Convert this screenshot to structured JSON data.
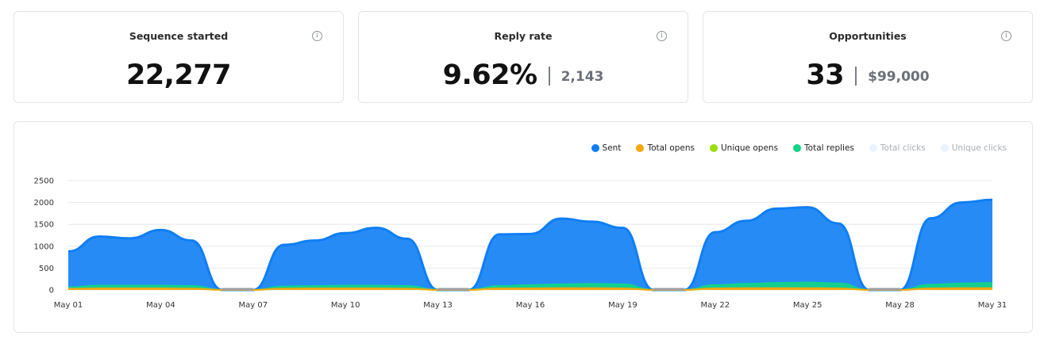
{
  "cards": [
    {
      "title": "Sequence started",
      "value": "22,277",
      "sub": ""
    },
    {
      "title": "Reply rate",
      "value": "9.62%",
      "sub": "2,143"
    },
    {
      "title": "Opportunities",
      "value": "33",
      "sub": "$99,000"
    }
  ],
  "info_icon": "info-icon",
  "legend": [
    {
      "label": "Sent",
      "color": "#0f7ef5",
      "enabled": true
    },
    {
      "label": "Total opens",
      "color": "#f5a70f",
      "enabled": true
    },
    {
      "label": "Unique opens",
      "color": "#9bde0e",
      "enabled": true
    },
    {
      "label": "Total replies",
      "color": "#13d28a",
      "enabled": true
    },
    {
      "label": "Total clicks",
      "color": "#e9f3fd",
      "enabled": false
    },
    {
      "label": "Unique clicks",
      "color": "#e9f3fd",
      "enabled": false
    }
  ],
  "chart_data": {
    "type": "area",
    "y_ticks": [
      "0",
      "500",
      "1000",
      "1500",
      "2000",
      "2500"
    ],
    "ylim": [
      0,
      2500
    ],
    "x_ticks": [
      "May 01",
      "May 04",
      "May 07",
      "May 10",
      "May 13",
      "May 16",
      "May 19",
      "May 22",
      "May 25",
      "May 28",
      "May 31"
    ],
    "x": [
      "May 01",
      "May 02",
      "May 03",
      "May 04",
      "May 05",
      "May 06",
      "May 07",
      "May 08",
      "May 09",
      "May 10",
      "May 11",
      "May 12",
      "May 13",
      "May 14",
      "May 15",
      "May 16",
      "May 17",
      "May 18",
      "May 19",
      "May 20",
      "May 21",
      "May 22",
      "May 23",
      "May 24",
      "May 25",
      "May 26",
      "May 27",
      "May 28",
      "May 29",
      "May 30",
      "May 31"
    ],
    "series": [
      {
        "name": "Sent",
        "values": [
          880,
          1220,
          1180,
          1370,
          1130,
          0,
          0,
          1030,
          1130,
          1300,
          1420,
          1170,
          0,
          0,
          1270,
          1280,
          1630,
          1560,
          1420,
          0,
          0,
          1320,
          1580,
          1860,
          1890,
          1520,
          0,
          0,
          1640,
          2000,
          2060
        ]
      },
      {
        "name": "Total replies",
        "values": [
          60,
          100,
          100,
          100,
          90,
          0,
          0,
          80,
          90,
          100,
          100,
          90,
          0,
          0,
          90,
          110,
          130,
          140,
          130,
          0,
          0,
          110,
          140,
          160,
          170,
          150,
          0,
          0,
          120,
          150,
          160
        ]
      },
      {
        "name": "Unique opens",
        "values": [
          20,
          30,
          30,
          30,
          25,
          0,
          0,
          25,
          30,
          30,
          30,
          25,
          0,
          0,
          30,
          30,
          35,
          35,
          30,
          0,
          0,
          30,
          35,
          35,
          35,
          30,
          0,
          0,
          30,
          35,
          35
        ]
      },
      {
        "name": "Total opens",
        "values": [
          25,
          35,
          35,
          35,
          30,
          0,
          0,
          30,
          35,
          35,
          35,
          30,
          0,
          0,
          35,
          35,
          40,
          40,
          35,
          0,
          0,
          35,
          40,
          40,
          40,
          35,
          0,
          0,
          35,
          40,
          40
        ]
      }
    ]
  }
}
